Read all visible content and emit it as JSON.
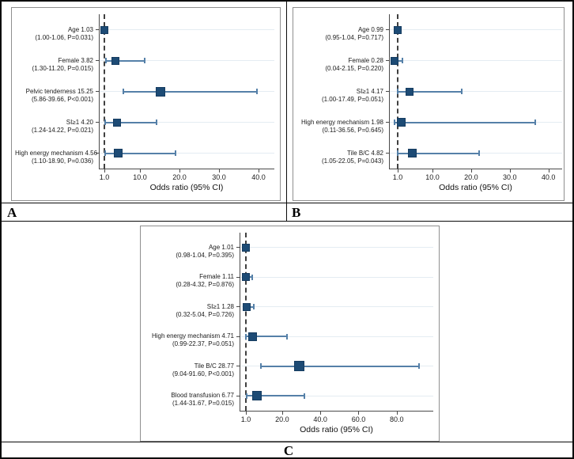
{
  "figure": {
    "panel_labels": {
      "a": "A",
      "b": "B",
      "c": "C"
    }
  },
  "colors": {
    "marker": "#1d4b75",
    "marker_border": "#163c60",
    "ci_line": "#5580a8",
    "grid_line": "#e4ecf2",
    "reference_line": "#404040",
    "axis": "#4a4a4a",
    "box_border": "#8f8f8f",
    "text": "#1a1a1a"
  },
  "chart_data": [
    {
      "panel": "A",
      "type": "forest",
      "xlabel": "Odds ratio (95% CI)",
      "xtick_values": [
        1,
        10,
        20,
        30,
        40
      ],
      "xtick_labels": [
        "1.0",
        "10.0",
        "20.0",
        "30.0",
        "40.0"
      ],
      "x_axis_range": [
        1,
        42
      ],
      "reference_line": 1.0,
      "grid": true,
      "rows": [
        {
          "name": "Age",
          "or": 1.03,
          "ci_low": 1.0,
          "ci_high": 1.06,
          "p": "P=0.031",
          "label_line1": "Age 1.03",
          "label_line2": "(1.00-1.06, P=0.031)",
          "marker_size": 10
        },
        {
          "name": "Female",
          "or": 3.82,
          "ci_low": 1.3,
          "ci_high": 11.2,
          "p": "P=0.015",
          "label_line1": "Female 3.82",
          "label_line2": "(1.30-11.20, P=0.015)",
          "marker_size": 10
        },
        {
          "name": "Pelvic tenderness",
          "or": 15.25,
          "ci_low": 5.86,
          "ci_high": 39.66,
          "p": "P<0.001",
          "label_line1": "Pelvic tenderness 15.25",
          "label_line2": "(5.86-39.66, P<0.001)",
          "marker_size": 12
        },
        {
          "name": "SI≥1",
          "or": 4.2,
          "ci_low": 1.24,
          "ci_high": 14.22,
          "p": "P=0.021",
          "label_line1": "SI≥1 4.20",
          "label_line2": "(1.24-14.22, P=0.021)",
          "marker_size": 10
        },
        {
          "name": "High energy mechanism",
          "or": 4.56,
          "ci_low": 1.1,
          "ci_high": 18.9,
          "p": "P=0.036",
          "label_line1": "High energy mechanism 4.56",
          "label_line2": "(1.10-18.90, P=0.036)",
          "marker_size": 11
        }
      ]
    },
    {
      "panel": "B",
      "type": "forest",
      "xlabel": "Odds ratio (95% CI)",
      "xtick_values": [
        1,
        10,
        20,
        30,
        40
      ],
      "xtick_labels": [
        "1.0",
        "10.0",
        "20.0",
        "30.0",
        "40.0"
      ],
      "x_axis_range": [
        1,
        41.5
      ],
      "reference_line": 1.0,
      "grid": true,
      "rows": [
        {
          "name": "Age",
          "or": 0.99,
          "ci_low": 0.95,
          "ci_high": 1.04,
          "p": "P=0.717",
          "label_line1": "Age 0.99",
          "label_line2": "(0.95-1.04, P=0.717)",
          "marker_size": 10
        },
        {
          "name": "Female",
          "or": 0.28,
          "ci_low": 0.04,
          "ci_high": 2.15,
          "p": "P=0.220",
          "label_line1": "Female 0.28",
          "label_line2": "(0.04-2.15, P=0.220)",
          "marker_size": 10
        },
        {
          "name": "SI≥1",
          "or": 4.17,
          "ci_low": 1.0,
          "ci_high": 17.49,
          "p": "P=0.051",
          "label_line1": "SI≥1 4.17",
          "label_line2": "(1.00-17.49, P=0.051)",
          "marker_size": 10
        },
        {
          "name": "High energy mechanism",
          "or": 1.98,
          "ci_low": 0.11,
          "ci_high": 36.56,
          "p": "P=0.645",
          "label_line1": "High energy mechanism 1.98",
          "label_line2": "(0.11-36.56, P=0.645)",
          "marker_size": 11
        },
        {
          "name": "Tile B/C",
          "or": 4.82,
          "ci_low": 1.05,
          "ci_high": 22.05,
          "p": "P=0.043",
          "label_line1": "Tile B/C 4.82",
          "label_line2": "(1.05-22.05, P=0.043)",
          "marker_size": 11
        }
      ]
    },
    {
      "panel": "C",
      "type": "forest",
      "xlabel": "Odds ratio (95% CI)",
      "xtick_values": [
        1,
        20,
        40,
        60,
        80
      ],
      "xtick_labels": [
        "1.0",
        "20.0",
        "40.0",
        "60.0",
        "80.0"
      ],
      "x_axis_range": [
        1,
        95
      ],
      "reference_line": 1.0,
      "grid": true,
      "rows": [
        {
          "name": "Age",
          "or": 1.01,
          "ci_low": 0.98,
          "ci_high": 1.04,
          "p": "P=0.395",
          "label_line1": "Age 1.01",
          "label_line2": "(0.98-1.04, P=0.395)",
          "marker_size": 10
        },
        {
          "name": "Female",
          "or": 1.11,
          "ci_low": 0.28,
          "ci_high": 4.32,
          "p": "P=0.876",
          "label_line1": "Female 1.11",
          "label_line2": "(0.28-4.32, P=0.876)",
          "marker_size": 10
        },
        {
          "name": "SI≥1",
          "or": 1.28,
          "ci_low": 0.32,
          "ci_high": 5.04,
          "p": "P=0.726",
          "label_line1": "SI≥1 1.28",
          "label_line2": "(0.32-5.04, P=0.726)",
          "marker_size": 10
        },
        {
          "name": "High energy mechanism",
          "or": 4.71,
          "ci_low": 0.99,
          "ci_high": 22.37,
          "p": "P=0.051",
          "label_line1": "High energy mechanism 4.71",
          "label_line2": "(0.99-22.37, P=0.051)",
          "marker_size": 11
        },
        {
          "name": "Tile B/C",
          "or": 28.77,
          "ci_low": 9.04,
          "ci_high": 91.6,
          "p": "P<0.001",
          "label_line1": "Tile B/C 28.77",
          "label_line2": "(9.04-91.60, P<0.001)",
          "marker_size": 13
        },
        {
          "name": "Blood transfusion",
          "or": 6.77,
          "ci_low": 1.44,
          "ci_high": 31.67,
          "p": "P=0.015",
          "label_line1": "Blood transfusion 6.77",
          "label_line2": "(1.44-31.67, P=0.015)",
          "marker_size": 12
        }
      ]
    }
  ]
}
